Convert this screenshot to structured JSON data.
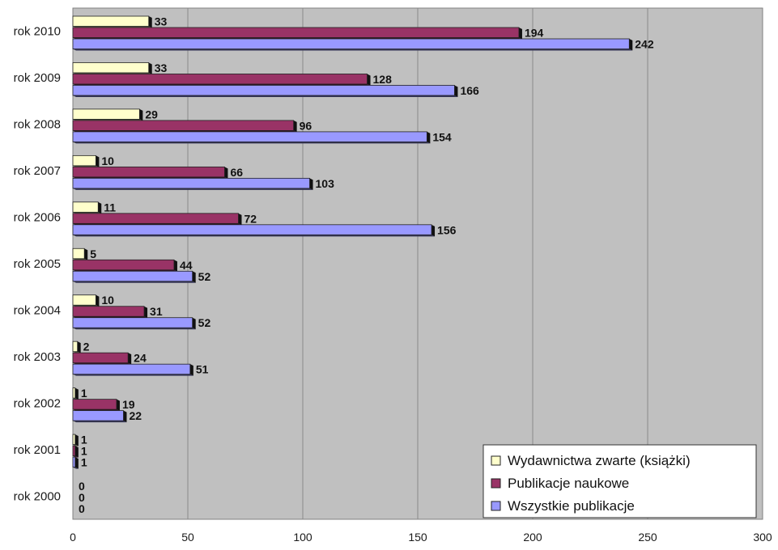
{
  "chart_data": {
    "type": "bar",
    "orientation": "horizontal",
    "categories": [
      "rok 2010",
      "rok 2009",
      "rok 2008",
      "rok 2007",
      "rok 2006",
      "rok 2005",
      "rok 2004",
      "rok 2003",
      "rok 2002",
      "rok 2001",
      "rok 2000"
    ],
    "series": [
      {
        "name": "Wydawnictwa zwarte (książki)",
        "color": "#FFFFCC",
        "values": [
          33,
          33,
          29,
          10,
          11,
          5,
          10,
          2,
          1,
          1,
          0
        ]
      },
      {
        "name": "Publikacje naukowe",
        "color": "#993366",
        "values": [
          194,
          128,
          96,
          66,
          72,
          44,
          31,
          24,
          19,
          1,
          0
        ]
      },
      {
        "name": "Wszystkie publikacje",
        "color": "#9999FF",
        "values": [
          242,
          166,
          154,
          103,
          156,
          52,
          52,
          51,
          22,
          1,
          0
        ]
      }
    ],
    "xlim": [
      0,
      300
    ],
    "xticks": [
      0,
      50,
      100,
      150,
      200,
      250,
      300
    ],
    "grid": true,
    "legend_position": "bottom-right",
    "plot_background": "#C0C0C0"
  }
}
